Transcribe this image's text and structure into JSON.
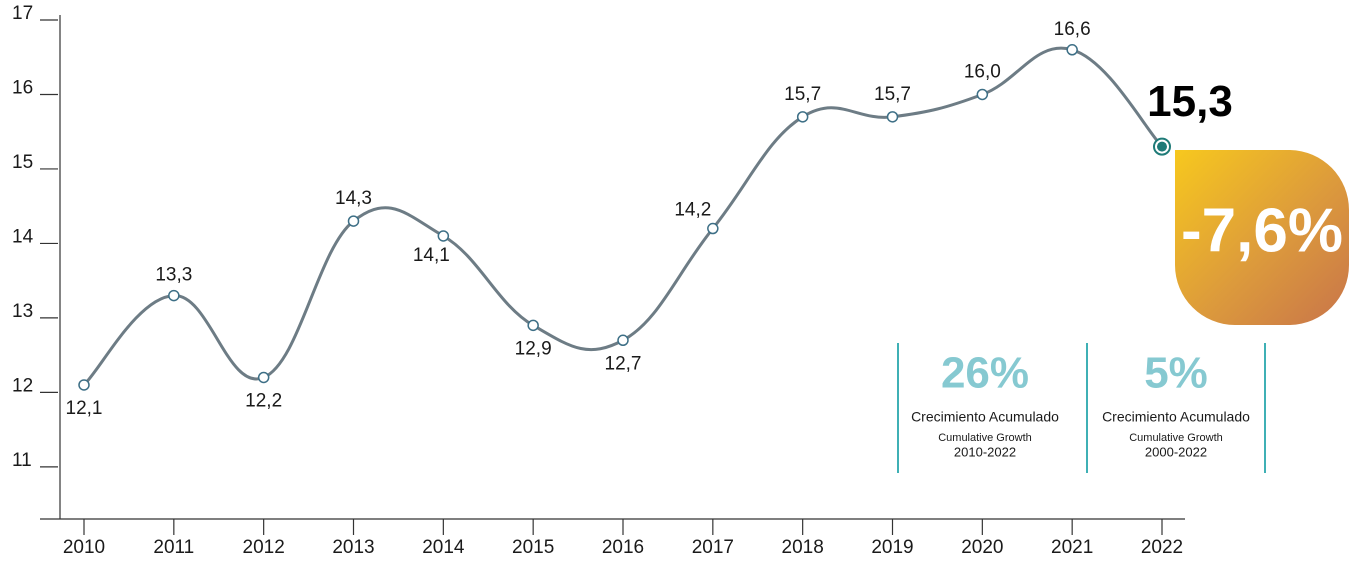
{
  "chart_data": {
    "type": "line",
    "categories": [
      "2010",
      "2011",
      "2012",
      "2013",
      "2014",
      "2015",
      "2016",
      "2017",
      "2018",
      "2019",
      "2020",
      "2021",
      "2022"
    ],
    "values": [
      12.1,
      13.3,
      12.2,
      14.3,
      14.1,
      12.9,
      12.7,
      14.2,
      15.7,
      15.7,
      16.0,
      16.6,
      15.3
    ],
    "value_labels": [
      "12,1",
      "13,3",
      "12,2",
      "14,3",
      "14,1",
      "12,9",
      "12,7",
      "14,2",
      "15,7",
      "15,7",
      "16,0",
      "16,6",
      "15,3"
    ],
    "color": "#6d7c85",
    "highlight_color": "#1f7b78",
    "ylim": [
      10.3,
      17
    ],
    "yticks": [
      11,
      12,
      13,
      14,
      15,
      16,
      17
    ],
    "annotations": {
      "badge": "-7,6%",
      "stats": [
        {
          "value_label": "26%",
          "title": "Crecimiento Acumulado",
          "subtitle": "Cumulative Growth",
          "period": "2010-2022"
        },
        {
          "value_label": "5%",
          "title": "Crecimiento Acumulado",
          "subtitle": "Cumulative Growth",
          "period": "2000-2022"
        }
      ]
    }
  }
}
